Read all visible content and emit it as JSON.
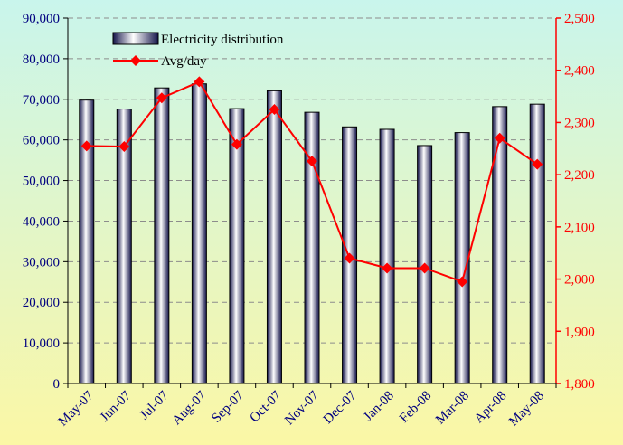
{
  "chart_data": {
    "type": "bar+line",
    "categories": [
      "May-07",
      "Jun-07",
      "Jul-07",
      "Aug-07",
      "Sep-07",
      "Oct-07",
      "Nov-07",
      "Dec-07",
      "Jan-08",
      "Feb-08",
      "Mar-08",
      "Apr-08",
      "May-08"
    ],
    "series": [
      {
        "name": "Electricity distribution",
        "type": "bar",
        "axis": "left",
        "values": [
          69800,
          67600,
          72800,
          73800,
          67700,
          72100,
          66800,
          63200,
          62600,
          58600,
          61800,
          68200,
          68800
        ]
      },
      {
        "name": "Avg/day",
        "type": "line",
        "axis": "right",
        "values": [
          2255,
          2254,
          2347,
          2378,
          2258,
          2325,
          2226,
          2040,
          2021,
          2021,
          1995,
          2270,
          2220
        ]
      }
    ],
    "y_left": {
      "min": 0,
      "max": 90000,
      "step": 10000,
      "ticks": [
        "0",
        "10,000",
        "20,000",
        "30,000",
        "40,000",
        "50,000",
        "60,000",
        "70,000",
        "80,000",
        "90,000"
      ]
    },
    "y_right": {
      "min": 1800,
      "max": 2500,
      "step": 100,
      "ticks": [
        "1,800",
        "1,900",
        "2,000",
        "2,100",
        "2,200",
        "2,300",
        "2,400",
        "2,500"
      ]
    },
    "grid": true,
    "legend_position": "top-left",
    "colors": {
      "bar_fill_dark": "#14144a",
      "bar_fill_light": "#ffffff",
      "line": "#ff0000",
      "right_axis_text": "#ff0000",
      "left_axis_text": "#000080",
      "background_top": "#c9f5ec",
      "background_bottom": "#fbf7a5"
    }
  }
}
